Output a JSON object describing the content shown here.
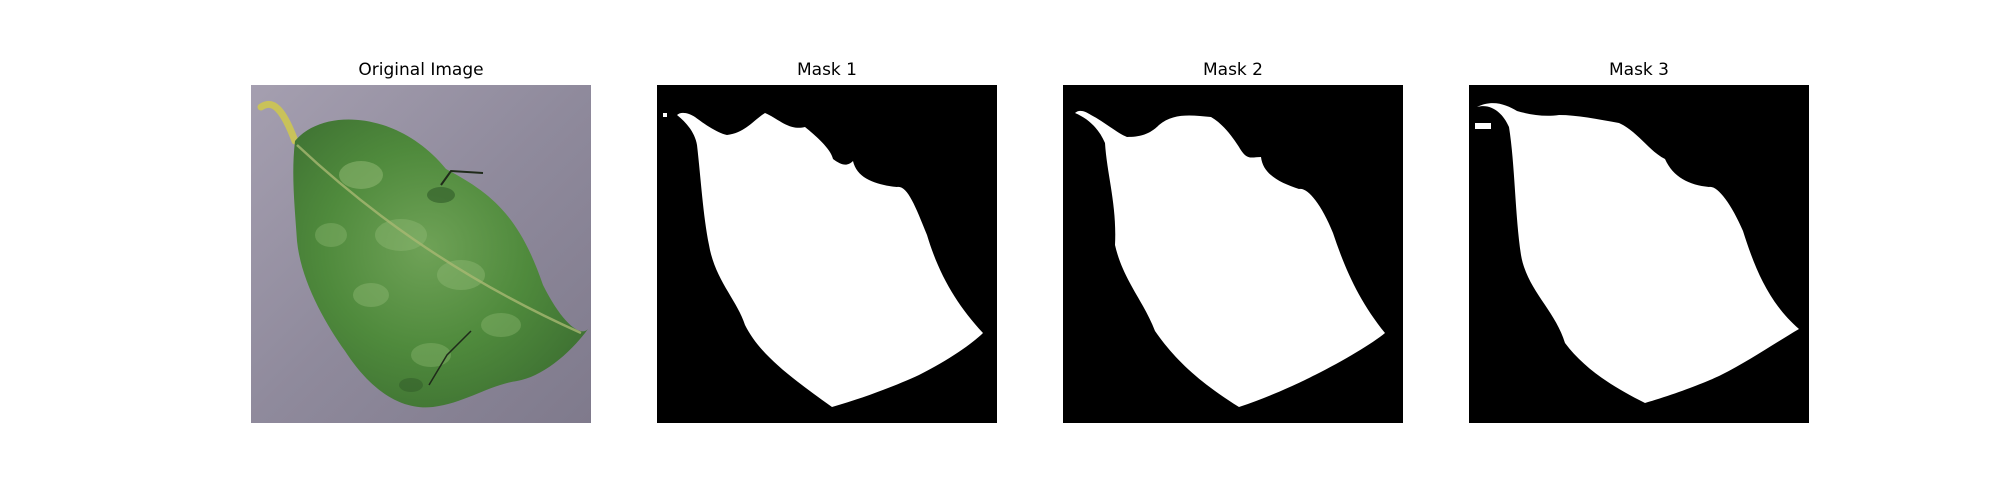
{
  "figure": {
    "panels": [
      {
        "title": "Original Image",
        "kind": "photo",
        "subject": "leaf-photo"
      },
      {
        "title": "Mask 1",
        "kind": "binary-mask",
        "foreground_color": "#ffffff",
        "background_color": "#000000"
      },
      {
        "title": "Mask 2",
        "kind": "binary-mask",
        "foreground_color": "#ffffff",
        "background_color": "#000000"
      },
      {
        "title": "Mask 3",
        "kind": "binary-mask",
        "foreground_color": "#ffffff",
        "background_color": "#000000"
      }
    ]
  },
  "colors": {
    "background_surface": "#8f8a9c",
    "leaf_green": "#4f8a3c",
    "leaf_dark": "#2f5a28",
    "leaf_light": "#8fb873",
    "stem_yellow": "#c9c25a",
    "mask_white": "#ffffff",
    "mask_black": "#000000"
  }
}
